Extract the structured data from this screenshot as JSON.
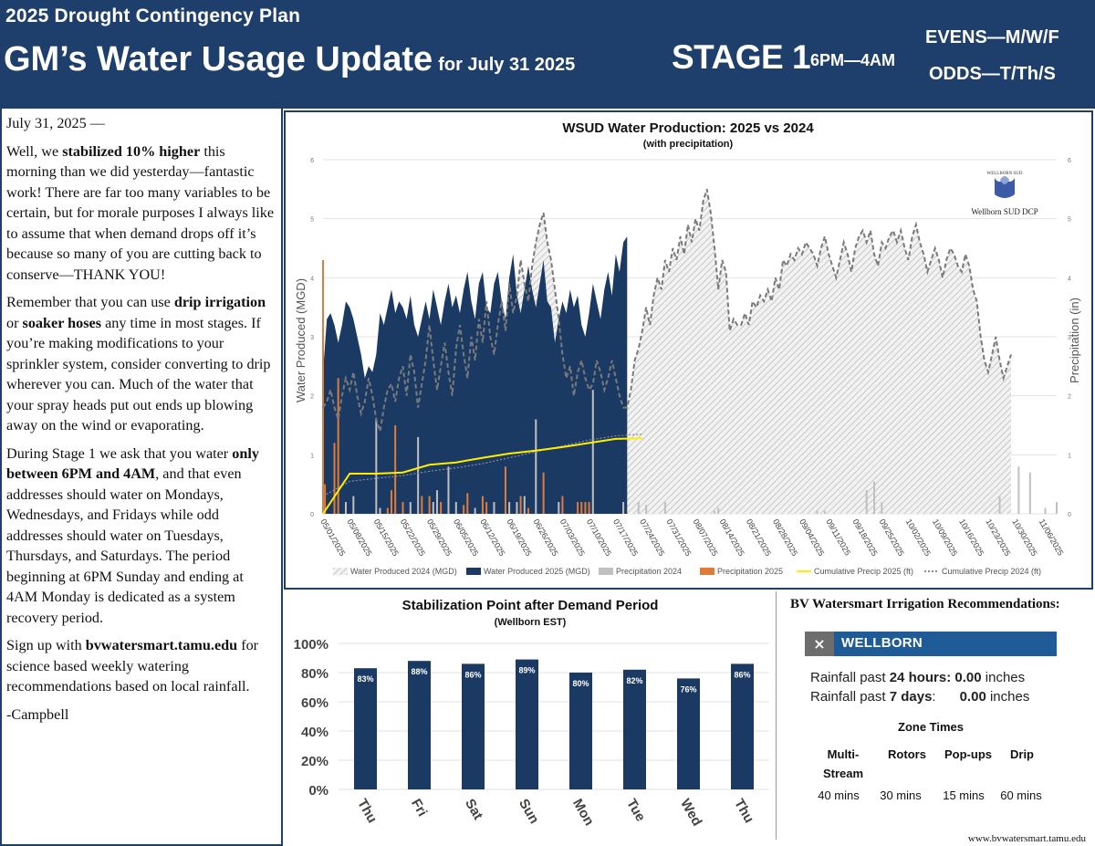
{
  "header": {
    "plan_name": "2025 Drought Contingency Plan",
    "title": "GM’s Water Usage Update",
    "for_date": "for July 31 2025",
    "stage": "STAGE 1",
    "hours": "6PM—4AM",
    "evens": "EVENS—M/W/F",
    "odds": "ODDS—T/Th/S",
    "background_color": "#1e3f6b"
  },
  "letter": {
    "date_line": "July 31, 2025 —",
    "p1_a": "Well, we ",
    "p1_b": "stabilized 10% higher",
    "p1_c": " this morning than we did yesterday—fantastic work! There are far too many variables to be certain, but for morale purposes I always like to assume that when demand drops off it’s because so many of you are cutting back to conserve—THANK YOU!",
    "p2_a": "Remember that you can use ",
    "p2_b": "drip irrigation",
    "p2_c": " or ",
    "p2_d": "soaker hoses",
    "p2_e": " any time in most stages.  If you’re making modifications to your sprinkler system, consider converting to drip wherever you can.  Much of the water that your spray heads put out ends up blowing away on the wind or evaporating.",
    "p3_a": "During Stage 1 we ask that you water ",
    "p3_b": "only between 6PM and 4AM",
    "p3_c": ", and that even addresses should water on Mondays, Wednesdays, and Fridays while odd addresses should water on Tuesdays, Thursdays, and Saturdays.  The period beginning at 6PM Sunday and ending at 4AM Monday is dedicated as a system recovery period.",
    "p4_a": "Sign up with ",
    "p4_b": "bvwatersmart.tamu.edu",
    "p4_c": " for science based weekly watering recommendations based on local rainfall.",
    "signature": "-Campbell"
  },
  "chart_data": [
    {
      "type": "area",
      "title": "WSUD Water Production: 2025 vs 2024",
      "subtitle": "(with precipitation)",
      "ylabel": "Water Produced (MGD)",
      "y2label": "Precipitation (in)",
      "ylim": [
        0,
        6
      ],
      "y2lim": [
        0,
        6
      ],
      "yticks": [
        0,
        1,
        2,
        3,
        4,
        5,
        6
      ],
      "x_tick_labels": [
        "05/01/2025",
        "05/08/2025",
        "05/15/2025",
        "05/22/2025",
        "05/29/2025",
        "06/05/2025",
        "06/12/2025",
        "06/19/2025",
        "06/26/2025",
        "07/03/2025",
        "07/10/2025",
        "07/17/2025",
        "07/24/2025",
        "07/31/2025",
        "08/07/2025",
        "08/14/2025",
        "08/21/2025",
        "08/28/2025",
        "09/04/2025",
        "09/11/2025",
        "09/18/2025",
        "09/25/2025",
        "10/02/2025",
        "10/09/2025",
        "10/16/2025",
        "10/23/2025",
        "10/30/2025",
        "11/06/2025"
      ],
      "legend_position": "bottom",
      "legend": [
        "Water Produced 2024 (MGD)",
        "Water Produced 2025 (MGD)",
        "Precipitation 2024",
        "Precipitation 2025",
        "Cumulative Precip 2025 (ft)",
        "Cumulative Precip 2024 (ft)"
      ],
      "colors": {
        "produced_2024": "#999999",
        "produced_2025": "#1b3a63",
        "precip_2024": "#c0c0c0",
        "precip_2025": "#e07b39",
        "cum_2025": "#ffee00",
        "cum_2024": "#8a8aa0"
      },
      "series": [
        {
          "name": "Water Produced 2024 (MGD)",
          "start_date": "05/01/2025",
          "step_days": 1,
          "values": [
            1.8,
            1.9,
            2.1,
            1.8,
            1.6,
            2.0,
            2.3,
            2.1,
            2.4,
            2.0,
            1.7,
            1.9,
            2.3,
            2.0,
            1.6,
            1.4,
            1.8,
            2.1,
            2.2,
            1.9,
            2.3,
            2.5,
            2.0,
            2.7,
            2.4,
            1.8,
            2.2,
            2.6,
            3.2,
            2.6,
            2.1,
            2.5,
            2.9,
            2.4,
            2.0,
            2.8,
            3.2,
            2.7,
            2.3,
            3.0,
            2.6,
            3.3,
            2.9,
            3.6,
            3.0,
            2.7,
            3.2,
            3.6,
            3.1,
            3.9,
            3.4,
            3.7,
            4.3,
            3.9,
            3.6,
            4.2,
            4.6,
            4.9,
            5.1,
            4.6,
            4.3,
            3.8,
            3.3,
            2.7,
            2.3,
            2.5,
            2.0,
            2.4,
            2.6,
            2.3,
            2.1,
            2.2,
            2.6,
            2.4,
            2.1,
            2.3,
            2.6,
            2.3,
            2.0,
            1.8,
            1.8,
            2.1,
            2.6,
            2.8,
            3.1,
            3.5,
            3.2,
            3.7,
            4.0,
            3.8,
            4.3,
            4.1,
            4.5,
            4.3,
            4.7,
            4.4,
            4.9,
            4.6,
            5.0,
            4.8,
            5.3,
            5.5,
            5.1,
            4.5,
            3.8,
            4.3,
            4.1,
            3.1,
            3.3,
            3.2,
            3.2,
            3.4,
            3.2,
            3.6,
            3.5,
            3.7,
            3.6,
            3.8,
            3.6,
            4.0,
            3.8,
            4.3,
            4.2,
            4.4,
            4.3,
            4.5,
            4.4,
            4.6,
            4.5,
            4.4,
            4.2,
            4.5,
            4.7,
            4.4,
            4.2,
            4.0,
            4.3,
            4.6,
            4.4,
            4.1,
            4.5,
            4.7,
            4.8,
            4.6,
            4.8,
            4.4,
            4.2,
            4.6,
            4.5,
            4.7,
            4.8,
            4.6,
            4.8,
            4.5,
            4.3,
            4.7,
            4.9,
            4.6,
            4.4,
            4.1,
            4.3,
            4.5,
            4.3,
            4.0,
            4.3,
            4.5,
            4.4,
            4.2,
            4.1,
            4.4,
            4.2,
            3.8,
            3.6,
            3.0,
            2.6,
            2.4,
            2.7,
            3.0,
            2.6,
            2.3,
            2.5,
            2.7
          ]
        },
        {
          "name": "Water Produced 2025 (MGD)",
          "start_date": "05/01/2025",
          "step_days": 1,
          "values": [
            2.4,
            3.3,
            3.4,
            3.2,
            2.9,
            3.2,
            3.6,
            3.5,
            3.3,
            3.0,
            2.7,
            2.3,
            2.5,
            2.4,
            2.7,
            3.4,
            3.2,
            3.5,
            3.8,
            3.4,
            3.6,
            3.5,
            3.3,
            3.7,
            3.2,
            3.0,
            3.3,
            3.6,
            3.3,
            3.8,
            3.5,
            3.2,
            3.6,
            3.9,
            3.5,
            3.7,
            3.4,
            3.8,
            4.1,
            3.6,
            3.3,
            3.9,
            4.1,
            3.5,
            3.4,
            3.9,
            4.1,
            3.6,
            3.3,
            4.0,
            4.4,
            3.7,
            3.4,
            3.8,
            4.2,
            3.8,
            3.5,
            3.9,
            4.3,
            3.6,
            3.5,
            2.9,
            3.3,
            3.6,
            3.4,
            3.8,
            3.5,
            3.7,
            3.2,
            3.0,
            3.4,
            3.9,
            3.6,
            3.3,
            3.8,
            4.1,
            3.7,
            4.4,
            4.1,
            4.6,
            4.7
          ]
        },
        {
          "name": "Cumulative Precip 2025 (ft)",
          "start_date": "05/01/2025",
          "step_days": 7,
          "values": [
            0.0,
            0.68,
            0.68,
            0.7,
            0.83,
            0.87,
            0.95,
            1.02,
            1.07,
            1.13,
            1.2,
            1.27,
            1.28
          ]
        },
        {
          "name": "Cumulative Precip 2024 (ft)",
          "start_date": "05/01/2025",
          "step_days": 7,
          "values": [
            0.3,
            0.55,
            0.6,
            0.65,
            0.72,
            0.78,
            0.85,
            0.95,
            1.05,
            1.15,
            1.25,
            1.32,
            1.35
          ]
        },
        {
          "name": "Precipitation 2025",
          "points": [
            [
              0,
              4.3
            ],
            [
              0.5,
              0.5
            ],
            [
              3,
              1.2
            ],
            [
              4,
              2.3
            ],
            [
              17,
              0.1
            ],
            [
              18,
              0.4
            ],
            [
              19,
              1.5
            ],
            [
              21,
              0.2
            ],
            [
              26,
              0.3
            ],
            [
              28,
              0.3
            ],
            [
              31,
              0.2
            ],
            [
              37,
              0.15
            ],
            [
              38,
              0.35
            ],
            [
              42,
              0.3
            ],
            [
              43,
              0.2
            ],
            [
              48,
              0.8
            ],
            [
              52,
              0.3
            ],
            [
              54,
              0.1
            ],
            [
              58,
              0.7
            ],
            [
              63,
              0.3
            ],
            [
              67,
              0.2
            ],
            [
              68,
              0.2
            ],
            [
              69,
              0.2
            ],
            [
              70,
              0.2
            ]
          ]
        },
        {
          "name": "Precipitation 2024",
          "points": [
            [
              6,
              0.2
            ],
            [
              8,
              0.3
            ],
            [
              14,
              1.6
            ],
            [
              15,
              0.1
            ],
            [
              23,
              0.2
            ],
            [
              25,
              1.3
            ],
            [
              29,
              0.2
            ],
            [
              30,
              0.4
            ],
            [
              33,
              0.8
            ],
            [
              35,
              0.2
            ],
            [
              40,
              0.1
            ],
            [
              45,
              0.2
            ],
            [
              49,
              0.2
            ],
            [
              51,
              0.2
            ],
            [
              53,
              0.3
            ],
            [
              56,
              1.6
            ],
            [
              62,
              0.2
            ],
            [
              71,
              2.1
            ],
            [
              79,
              0.2
            ],
            [
              83,
              0.2
            ],
            [
              85,
              0.15
            ],
            [
              90,
              0.2
            ],
            [
              103,
              0.05
            ],
            [
              104,
              0.1
            ],
            [
              130,
              0.05
            ],
            [
              132,
              0.05
            ],
            [
              143,
              0.4
            ],
            [
              145,
              0.55
            ],
            [
              147,
              0.2
            ],
            [
              178,
              0.3
            ],
            [
              183,
              0.8
            ],
            [
              186,
              0.7
            ],
            [
              190,
              0.1
            ],
            [
              193,
              0.2
            ]
          ]
        }
      ]
    },
    {
      "type": "bar",
      "title": "Stabilization Point after Demand Period",
      "subtitle": "(Wellborn EST)",
      "categories": [
        "Thu",
        "Fri",
        "Sat",
        "Sun",
        "Mon",
        "Tue",
        "Wed",
        "Thu"
      ],
      "values": [
        83,
        88,
        86,
        89,
        80,
        82,
        76,
        86
      ],
      "value_labels": [
        "83%",
        "88%",
        "86%",
        "89%",
        "80%",
        "82%",
        "76%",
        "86%"
      ],
      "ylim": [
        0,
        100
      ],
      "ytick_labels": [
        "0%",
        "20%",
        "40%",
        "60%",
        "80%",
        "100%"
      ],
      "color": "#1b3a63"
    }
  ],
  "logo": {
    "name": "WELLBORN SUD",
    "caption": "Wellborn SUD DCP"
  },
  "watersmart": {
    "title": "BV Watersmart Irrigation Recommendations:",
    "close": "×",
    "location": "WELLBORN",
    "rain_24_label": "Rainfall past ",
    "rain_24_period": "24 hours",
    "rain_24_value": ": 0.00",
    "rain_24_unit": " inches",
    "rain_7_label": "Rainfall past ",
    "rain_7_period": "7 days",
    "rain_7_colon": ":",
    "rain_7_value": "0.00",
    "rain_7_unit": " inches",
    "zone_title": "Zone Times",
    "zones": [
      {
        "name_1": "Multi-",
        "name_2": "Stream",
        "time": "40 mins"
      },
      {
        "name_1": "Rotors",
        "name_2": "",
        "time": "30 mins"
      },
      {
        "name_1": "Pop-ups",
        "name_2": "",
        "time": "15 mins"
      },
      {
        "name_1": "Drip",
        "name_2": "",
        "time": "60 mins"
      }
    ],
    "accent": "#1f5c97",
    "url": "www.bvwatersmart.tamu.edu"
  }
}
